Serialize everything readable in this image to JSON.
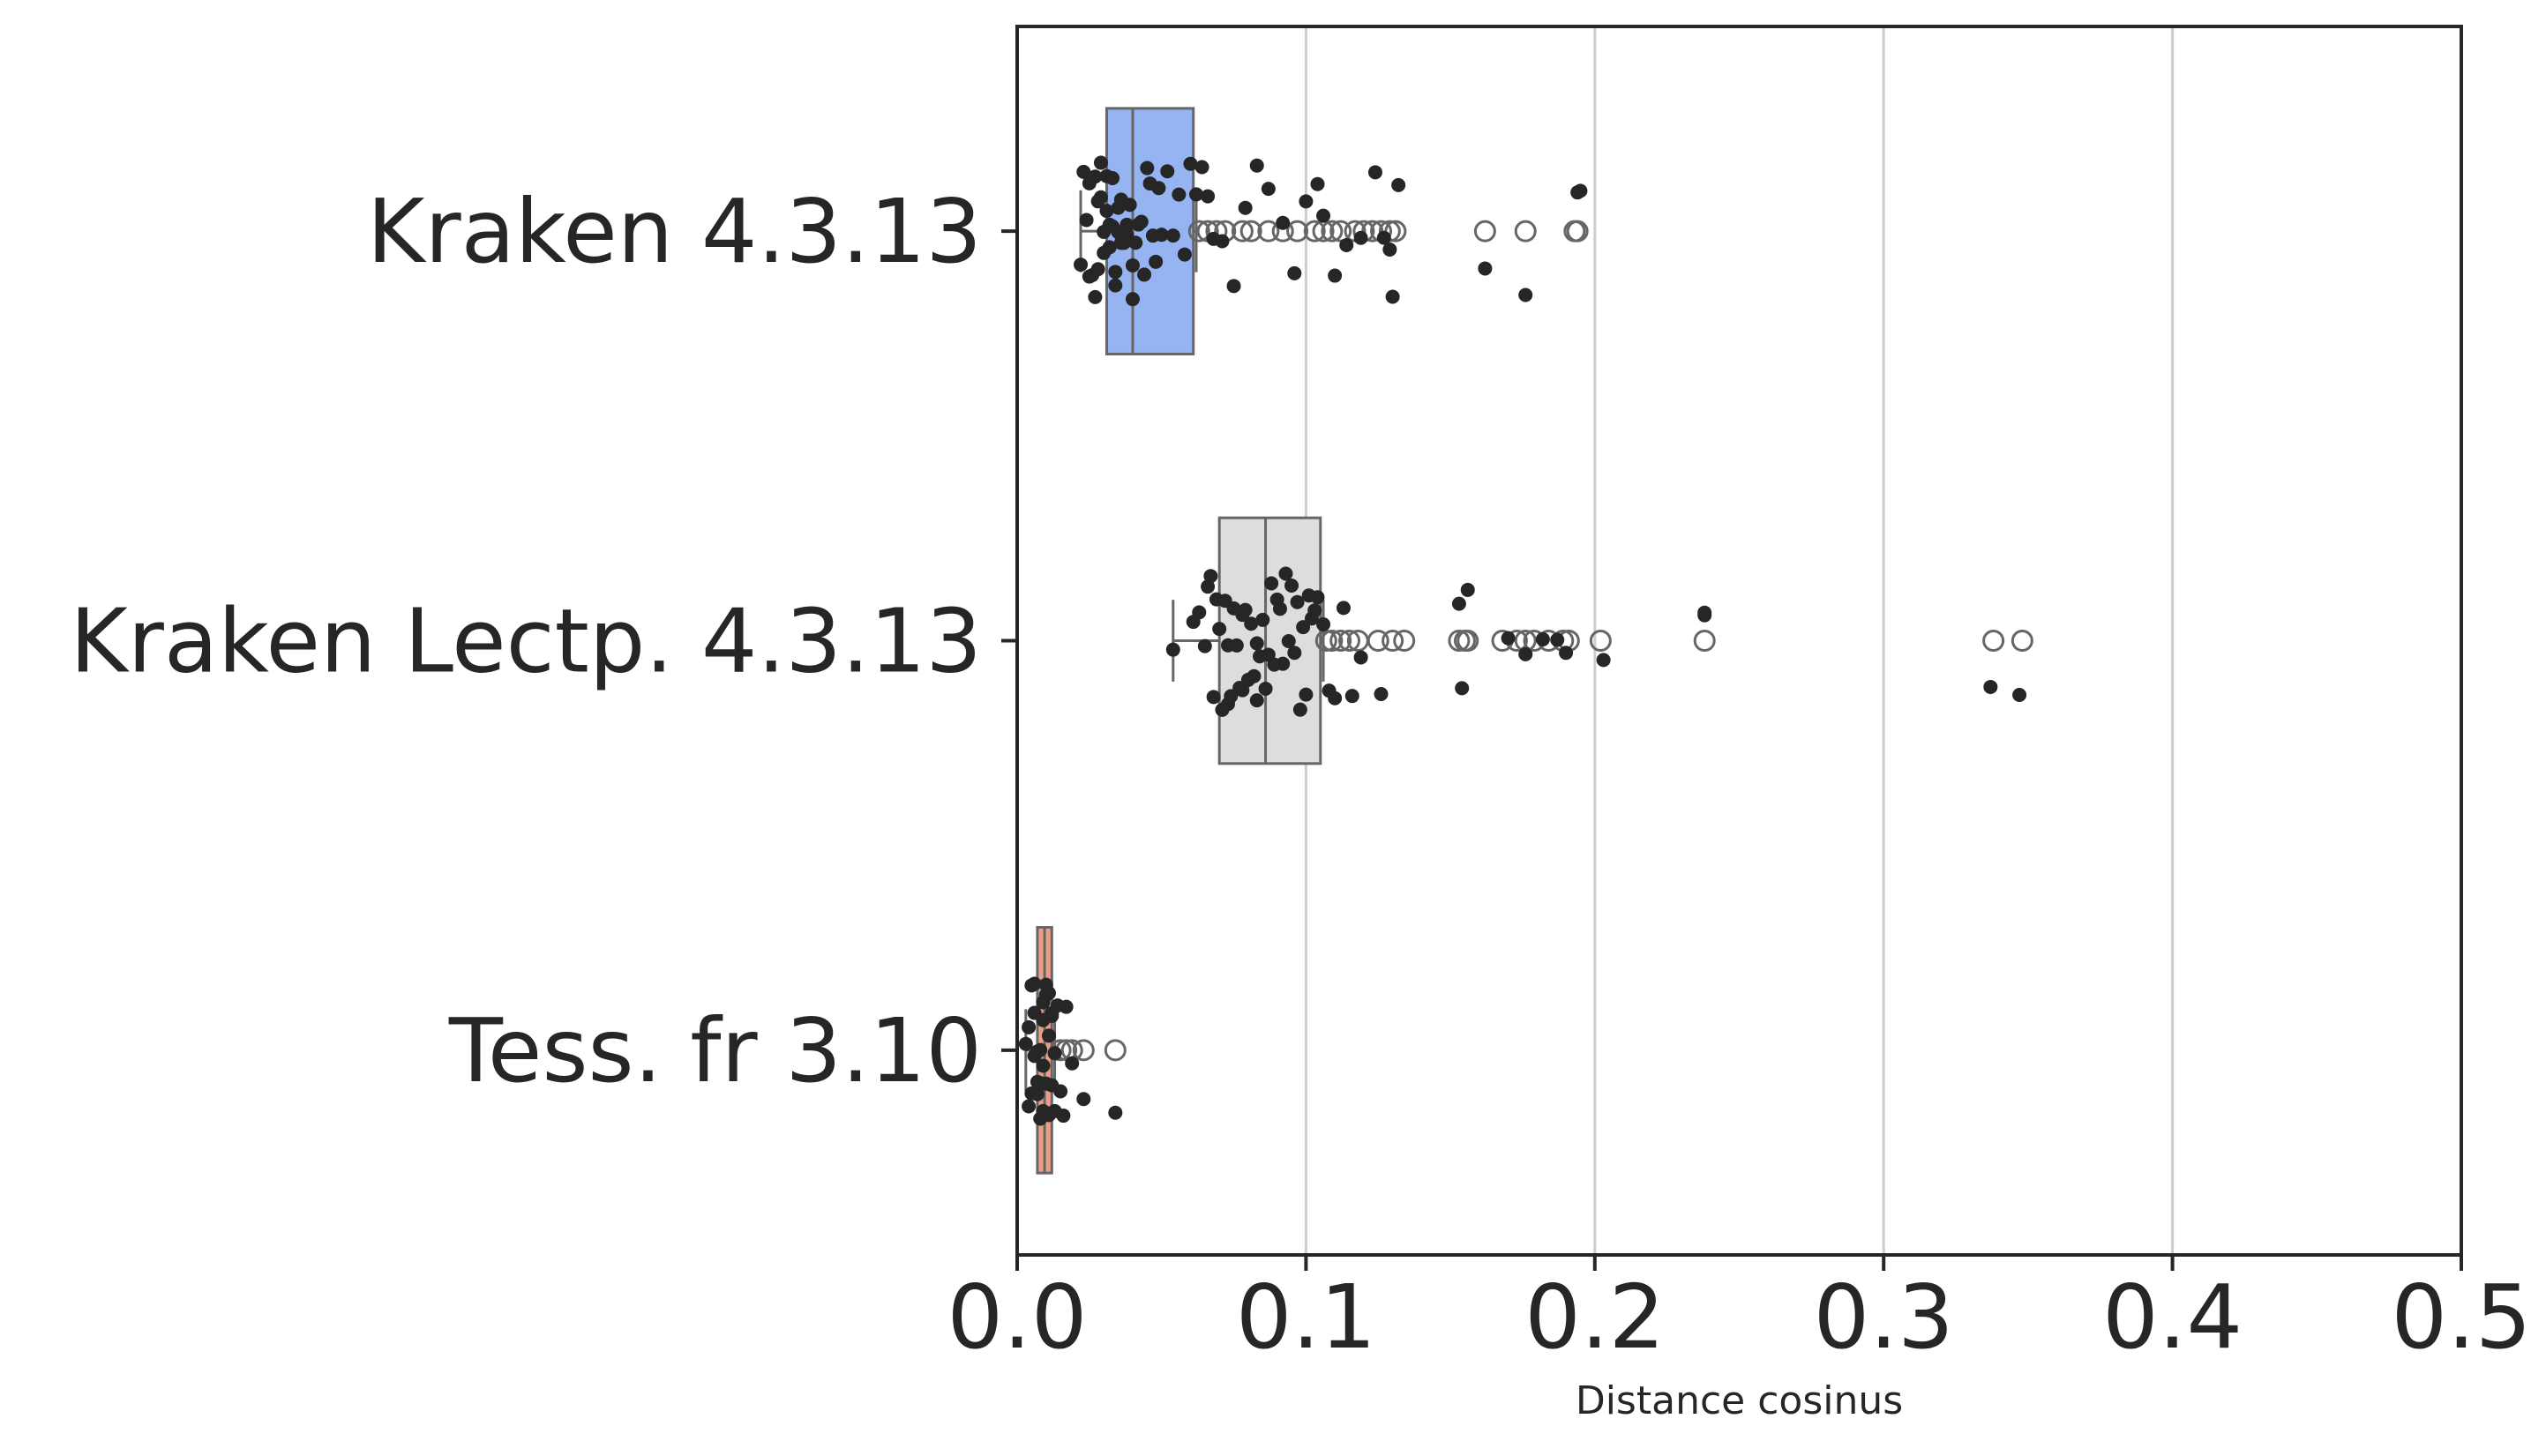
{
  "chart_data": {
    "type": "box",
    "orientation": "horizontal",
    "xlabel": "Distance cosinus",
    "xlim": [
      0,
      0.5
    ],
    "xticks": [
      0.0,
      0.1,
      0.2,
      0.3,
      0.4,
      0.5
    ],
    "xtick_labels": [
      "0.0",
      "0.1",
      "0.2",
      "0.3",
      "0.4",
      "0.5"
    ],
    "grid": {
      "x": true,
      "y": false
    },
    "categories": [
      "Kraken 4.3.13",
      "Kraken Lectp. 4.3.13",
      "Tess. fr 3.10"
    ],
    "colors": {
      "Kraken 4.3.13": "#97b4f2",
      "Kraken Lectp. 4.3.13": "#dddddd",
      "Tess. fr 3.10": "#e8a088",
      "box_edge": "#666666",
      "points": "#262626",
      "outlier_edge": "#666666",
      "grid": "#cccccc"
    },
    "boxes": [
      {
        "category": "Kraken 4.3.13",
        "whisker_low": 0.022,
        "q1": 0.031,
        "median": 0.04,
        "q3": 0.061,
        "whisker_high": 0.062,
        "outliers": [
          0.063,
          0.066,
          0.069,
          0.072,
          0.078,
          0.081,
          0.087,
          0.092,
          0.097,
          0.103,
          0.106,
          0.109,
          0.112,
          0.117,
          0.12,
          0.123,
          0.126,
          0.129,
          0.131,
          0.162,
          0.176,
          0.193,
          0.194
        ],
        "points": [
          0.022,
          0.023,
          0.024,
          0.025,
          0.025,
          0.026,
          0.027,
          0.027,
          0.028,
          0.028,
          0.029,
          0.029,
          0.03,
          0.03,
          0.031,
          0.031,
          0.032,
          0.032,
          0.033,
          0.033,
          0.034,
          0.034,
          0.035,
          0.035,
          0.036,
          0.036,
          0.037,
          0.038,
          0.038,
          0.039,
          0.04,
          0.04,
          0.041,
          0.042,
          0.043,
          0.044,
          0.045,
          0.046,
          0.047,
          0.048,
          0.049,
          0.05,
          0.052,
          0.054,
          0.056,
          0.058,
          0.06,
          0.062,
          0.064,
          0.066,
          0.068,
          0.071,
          0.075,
          0.079,
          0.083,
          0.087,
          0.092,
          0.096,
          0.1,
          0.104,
          0.106,
          0.11,
          0.114,
          0.119,
          0.124,
          0.127,
          0.129,
          0.13,
          0.132,
          0.162,
          0.176,
          0.194,
          0.195
        ]
      },
      {
        "category": "Kraken Lectp. 4.3.13",
        "whisker_low": 0.054,
        "q1": 0.07,
        "median": 0.086,
        "q3": 0.105,
        "whisker_high": 0.106,
        "outliers": [
          0.107,
          0.109,
          0.112,
          0.115,
          0.118,
          0.125,
          0.13,
          0.134,
          0.153,
          0.155,
          0.156,
          0.168,
          0.173,
          0.176,
          0.179,
          0.184,
          0.189,
          0.191,
          0.202,
          0.238,
          0.338,
          0.348
        ],
        "points": [
          0.054,
          0.061,
          0.063,
          0.065,
          0.066,
          0.067,
          0.068,
          0.069,
          0.07,
          0.071,
          0.072,
          0.073,
          0.073,
          0.074,
          0.075,
          0.076,
          0.077,
          0.078,
          0.078,
          0.079,
          0.08,
          0.081,
          0.082,
          0.083,
          0.083,
          0.084,
          0.085,
          0.086,
          0.087,
          0.088,
          0.089,
          0.09,
          0.091,
          0.092,
          0.093,
          0.094,
          0.095,
          0.096,
          0.097,
          0.098,
          0.099,
          0.1,
          0.101,
          0.102,
          0.103,
          0.104,
          0.106,
          0.108,
          0.11,
          0.113,
          0.116,
          0.119,
          0.126,
          0.153,
          0.154,
          0.156,
          0.17,
          0.176,
          0.182,
          0.187,
          0.19,
          0.203,
          0.238,
          0.238,
          0.337,
          0.347
        ]
      },
      {
        "category": "Tess. fr 3.10",
        "whisker_low": 0.003,
        "q1": 0.007,
        "median": 0.0095,
        "q3": 0.012,
        "whisker_high": 0.013,
        "outliers": [
          0.015,
          0.017,
          0.019,
          0.023,
          0.034
        ],
        "points": [
          0.003,
          0.004,
          0.004,
          0.005,
          0.005,
          0.006,
          0.006,
          0.006,
          0.007,
          0.007,
          0.007,
          0.008,
          0.008,
          0.008,
          0.009,
          0.009,
          0.009,
          0.009,
          0.01,
          0.01,
          0.01,
          0.011,
          0.011,
          0.011,
          0.012,
          0.012,
          0.012,
          0.013,
          0.013,
          0.014,
          0.015,
          0.016,
          0.017,
          0.019,
          0.023,
          0.034
        ]
      }
    ]
  }
}
